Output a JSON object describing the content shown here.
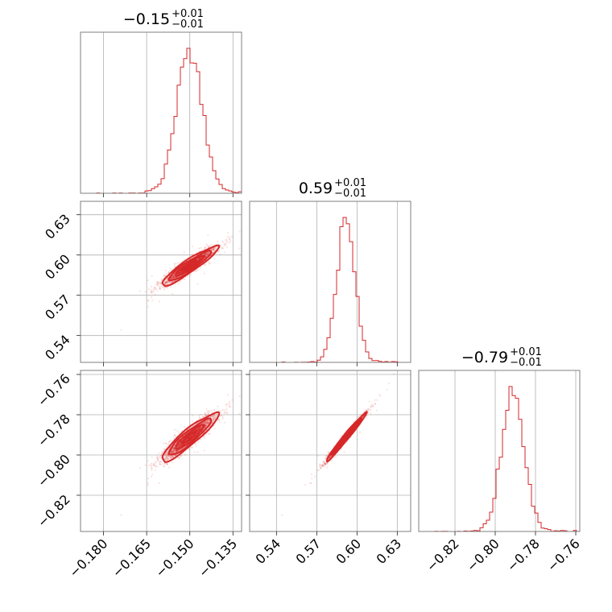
{
  "chart_data": {
    "type": "corner",
    "color": "#d62728",
    "parameters": [
      {
        "title_value": "−0.15",
        "title_upper": "+0.01",
        "title_lower": "−0.01",
        "median": -0.15,
        "sigma": 0.0045,
        "range": [
          -0.188,
          -0.132
        ],
        "ticks": [
          {
            "v": -0.18,
            "label": "−0.180"
          },
          {
            "v": -0.165,
            "label": "−0.165"
          },
          {
            "v": -0.15,
            "label": "−0.150"
          },
          {
            "v": -0.135,
            "label": "−0.135"
          }
        ]
      },
      {
        "title_value": "0.59",
        "title_upper": "+0.01",
        "title_lower": "−0.01",
        "median": 0.592,
        "sigma": 0.0068,
        "range": [
          0.52,
          0.64
        ],
        "ticks": [
          {
            "v": 0.54,
            "label": "0.54"
          },
          {
            "v": 0.57,
            "label": "0.57"
          },
          {
            "v": 0.6,
            "label": "0.60"
          },
          {
            "v": 0.63,
            "label": "0.63"
          }
        ]
      },
      {
        "title_value": "−0.79",
        "title_upper": "+0.01",
        "title_lower": "−0.01",
        "median": -0.791,
        "sigma": 0.0055,
        "range": [
          -0.838,
          -0.758
        ],
        "ticks": [
          {
            "v": -0.82,
            "label": "−0.82"
          },
          {
            "v": -0.8,
            "label": "−0.80"
          },
          {
            "v": -0.78,
            "label": "−0.78"
          },
          {
            "v": -0.76,
            "label": "−0.76"
          }
        ]
      }
    ],
    "grid": true
  }
}
